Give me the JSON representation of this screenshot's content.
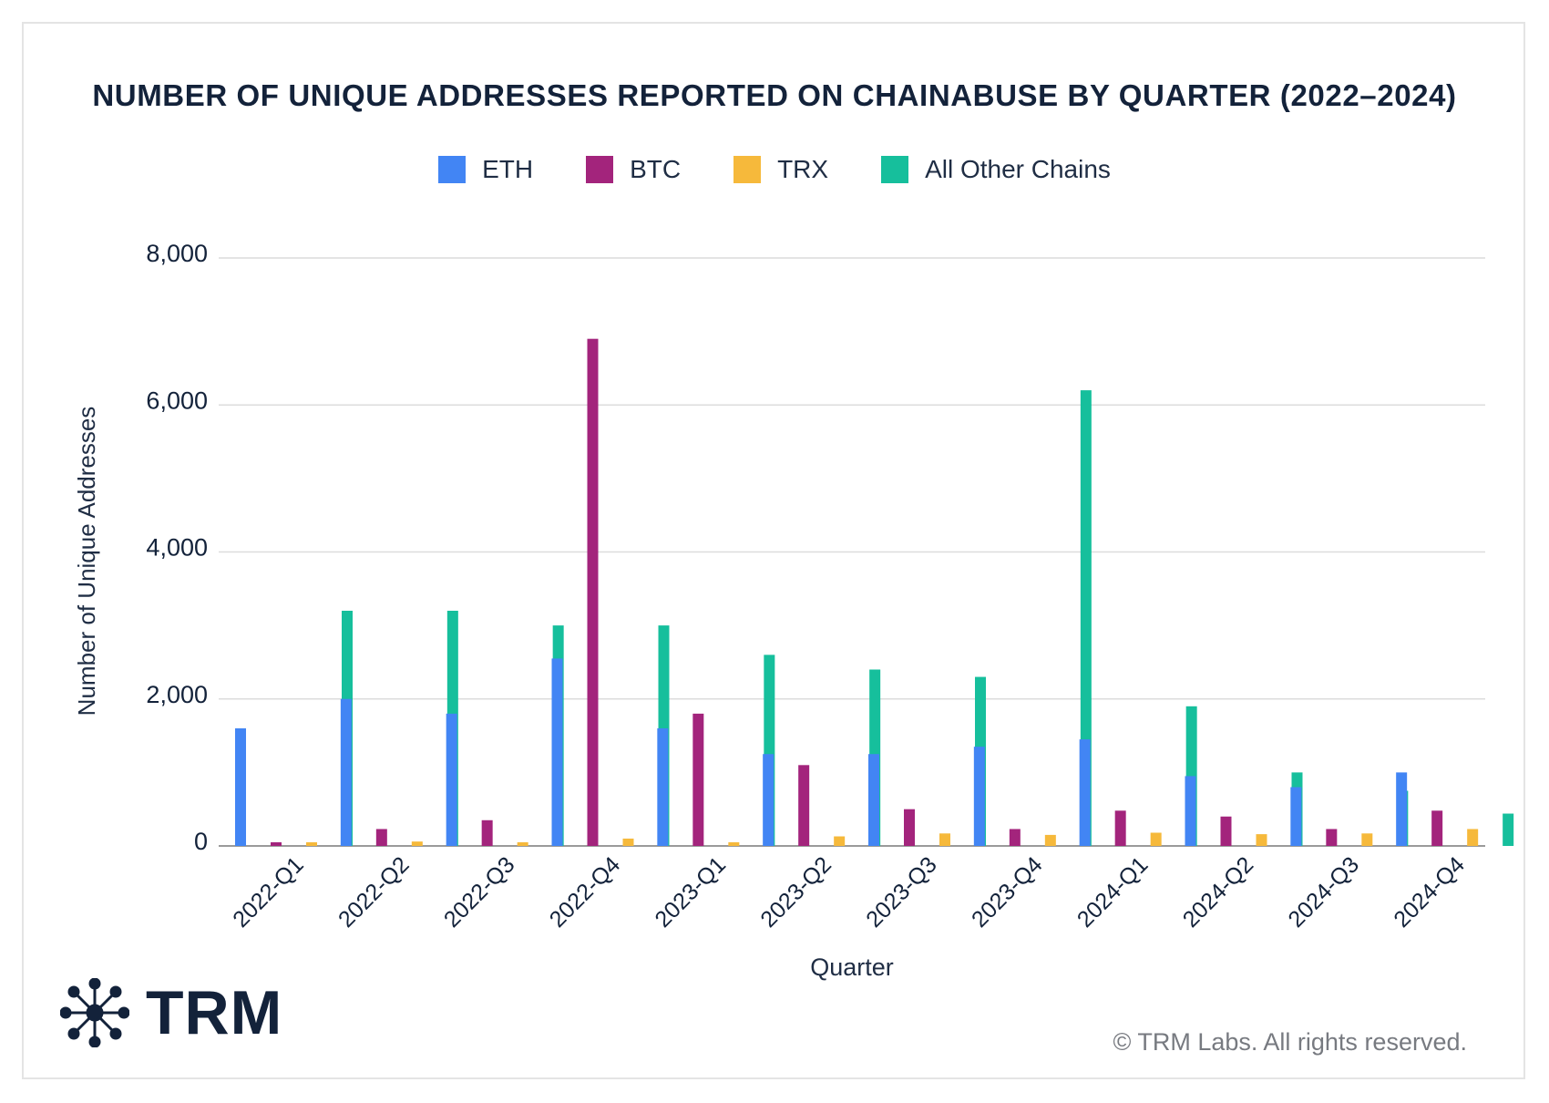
{
  "legend": [
    {
      "label": "ETH",
      "color": "#4285f4"
    },
    {
      "label": "BTC",
      "color": "#a3247c"
    },
    {
      "label": "TRX",
      "color": "#f6b93b"
    },
    {
      "label": "All Other Chains",
      "color": "#16bf9c"
    }
  ],
  "chart_data": {
    "type": "bar",
    "title": "NUMBER OF UNIQUE ADDRESSES REPORTED ON CHAINABUSE BY QUARTER (2022–2024)",
    "xlabel": "Quarter",
    "ylabel": "Number of Unique Addresses",
    "ylim": [
      0,
      8000
    ],
    "yticks": [
      "0",
      "2,000",
      "4,000",
      "6,000",
      "8,000"
    ],
    "ytick_values": [
      0,
      2000,
      4000,
      6000,
      8000
    ],
    "grid": true,
    "legend_position": "top-center",
    "categories": [
      "2022-Q1",
      "2022-Q2",
      "2022-Q3",
      "2022-Q4",
      "2023-Q1",
      "2023-Q2",
      "2023-Q3",
      "2023-Q4",
      "2024-Q1",
      "2024-Q2",
      "2024-Q3",
      "2024-Q4"
    ],
    "series": [
      {
        "name": "ETH",
        "color": "#4285f4",
        "values": [
          1600,
          2000,
          1800,
          2550,
          1600,
          1250,
          1250,
          1350,
          1450,
          950,
          800,
          1000
        ]
      },
      {
        "name": "BTC",
        "color": "#a3247c",
        "values": [
          50,
          230,
          350,
          6900,
          1800,
          1100,
          500,
          230,
          480,
          400,
          230,
          480
        ]
      },
      {
        "name": "TRX",
        "color": "#f6b93b",
        "values": [
          50,
          60,
          50,
          100,
          50,
          130,
          170,
          150,
          180,
          160,
          170,
          230
        ]
      },
      {
        "name": "All Other Chains",
        "color": "#16bf9c",
        "values": [
          3200,
          3200,
          3000,
          3000,
          2600,
          2400,
          2300,
          6200,
          1900,
          1000,
          750,
          440
        ]
      }
    ]
  },
  "branding": {
    "logo_text": "TRM",
    "copyright": "© TRM Labs. All rights reserved."
  }
}
